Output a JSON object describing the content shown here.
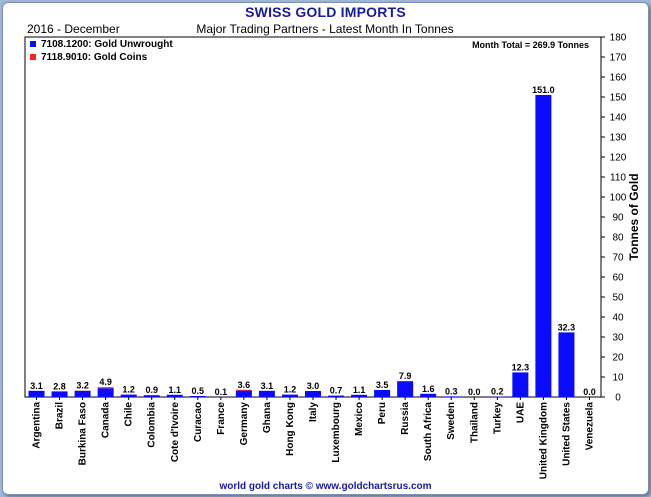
{
  "page": {
    "title": "SWISS GOLD IMPORTS",
    "footer": "world gold charts © www.goldchartsrus.com"
  },
  "chart_data": {
    "type": "bar",
    "period_label": "2016 - December",
    "subtitle": "Major Trading Partners - Latest Month In Tonnes",
    "total_label": "Month Total = 269.9 Tonnes",
    "ylabel": "Tonnes of Gold",
    "xlabel": "",
    "ylim": [
      0,
      180
    ],
    "yticks": [
      0,
      10,
      20,
      30,
      40,
      50,
      60,
      70,
      80,
      90,
      100,
      110,
      120,
      130,
      140,
      150,
      160,
      170,
      180
    ],
    "grid": false,
    "legend_position": "top-left",
    "categories": [
      "Argentina",
      "Brazil",
      "Burkina Faso",
      "Canada",
      "Chile",
      "Colombia",
      "Cote d'Ivoire",
      "Curacao",
      "France",
      "Germany",
      "Ghana",
      "Hong Kong",
      "Italy",
      "Luxembourg",
      "Mexico",
      "Peru",
      "Russia",
      "South Africa",
      "Sweden",
      "Thailand",
      "Turkey",
      "UAE",
      "United Kingdom",
      "United States",
      "Venezuela"
    ],
    "totals": [
      "3.1",
      "2.8",
      "3.2",
      "4.9",
      "1.2",
      "0.9",
      "1.1",
      "0.5",
      "0.1",
      "3.6",
      "3.1",
      "1.2",
      "3.0",
      "0.7",
      "1.1",
      "3.5",
      "7.9",
      "1.6",
      "0.3",
      "0.0",
      "0.2",
      "12.3",
      "151.0",
      "32.3",
      "0.0"
    ],
    "series": [
      {
        "name": "7108.1200: Gold Unwrought",
        "color": "#0a0aff",
        "values": [
          3.1,
          2.8,
          3.1,
          4.4,
          1.2,
          0.9,
          1.1,
          0.5,
          0.1,
          3.2,
          3.1,
          1.2,
          3.0,
          0.7,
          1.1,
          3.5,
          7.9,
          1.6,
          0.3,
          0.0,
          0.2,
          12.3,
          151.0,
          32.3,
          0.0
        ]
      },
      {
        "name": "7118.9010: Gold Coins",
        "color": "#ff2020",
        "values": [
          0.0,
          0.0,
          0.1,
          0.5,
          0.0,
          0.0,
          0.0,
          0.0,
          0.0,
          0.4,
          0.0,
          0.0,
          0.0,
          0.0,
          0.0,
          0.0,
          0.0,
          0.0,
          0.0,
          0.0,
          0.0,
          0.0,
          0.0,
          0.0,
          0.0
        ]
      }
    ]
  }
}
